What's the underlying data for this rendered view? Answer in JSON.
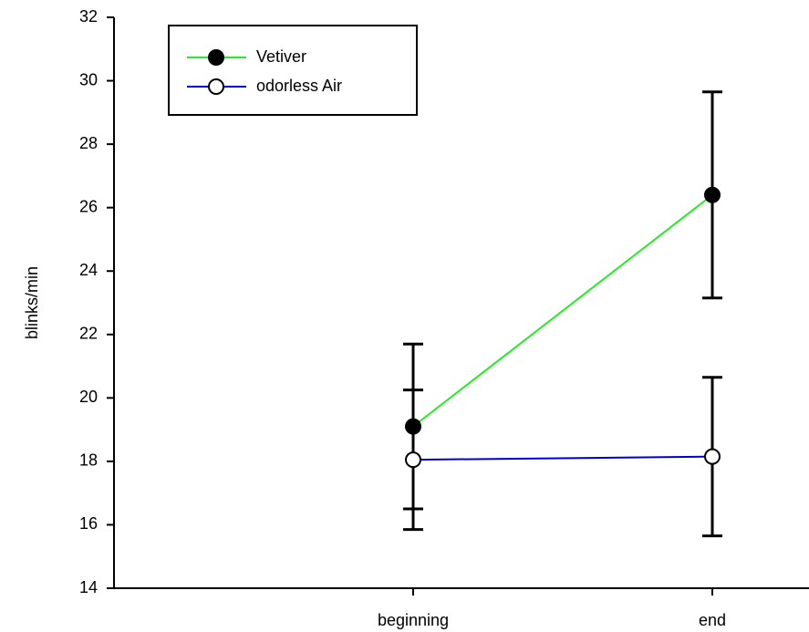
{
  "chart_data": {
    "type": "line",
    "y_label": "blinks/min",
    "categories": [
      "beginning",
      "end"
    ],
    "series": [
      {
        "name": "Vetiver",
        "color": "#22ee22",
        "marker_fill": "#000000",
        "values": [
          19.1,
          26.4
        ],
        "errors": [
          2.6,
          3.25
        ]
      },
      {
        "name": "odorless Air",
        "color": "#0000cc",
        "marker_fill": "#ffffff",
        "values": [
          18.05,
          18.15
        ],
        "errors": [
          2.2,
          2.5
        ]
      }
    ],
    "ylim": [
      14,
      32
    ],
    "yticks": [
      14,
      16,
      18,
      20,
      22,
      24,
      26,
      28,
      30,
      32
    ],
    "legend": "upper-left",
    "grid": false
  }
}
